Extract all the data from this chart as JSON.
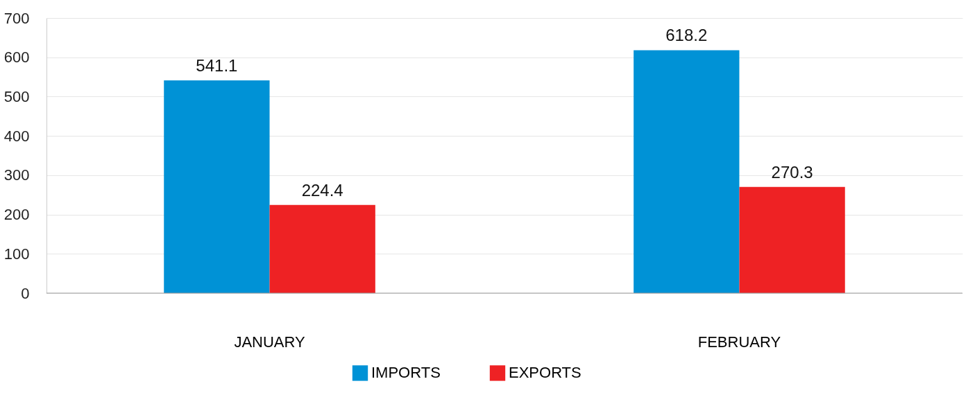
{
  "chart_data": {
    "type": "bar",
    "categories": [
      "JANUARY",
      "FEBRUARY"
    ],
    "series": [
      {
        "name": "IMPORTS",
        "color": "#0092d6",
        "values": [
          541.1,
          618.2
        ]
      },
      {
        "name": "EXPORTS",
        "color": "#ee2224",
        "values": [
          224.4,
          270.3
        ]
      }
    ],
    "ylim": [
      0,
      700
    ],
    "yticks": [
      0,
      100,
      200,
      300,
      400,
      500,
      600,
      700
    ],
    "grid": "y",
    "legend": "bottom",
    "data_labels": true
  }
}
